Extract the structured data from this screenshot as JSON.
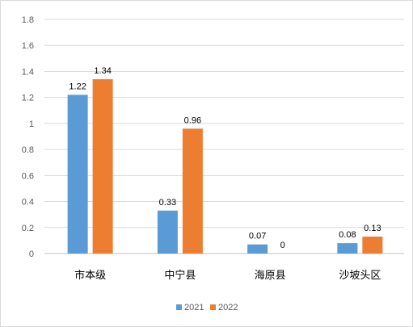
{
  "chart_data": {
    "type": "bar",
    "categories": [
      "市本级",
      "中宁县",
      "海原县",
      "沙坡头区"
    ],
    "series": [
      {
        "name": "2021",
        "values": [
          1.22,
          0.33,
          0.07,
          0.08
        ],
        "labels": [
          "1.22",
          "0.33",
          "0.07",
          "0.08"
        ],
        "color": "#5b9bd5"
      },
      {
        "name": "2022",
        "values": [
          1.34,
          0.96,
          0,
          0.13
        ],
        "labels": [
          "1.34",
          "0.96",
          "0",
          "0.13"
        ],
        "color": "#ed7d31"
      }
    ],
    "yticks": [
      "0",
      "0.2",
      "0.4",
      "0.6",
      "0.8",
      "1",
      "1.2",
      "1.4",
      "1.6",
      "1.8"
    ],
    "ylim": [
      0,
      1.8
    ],
    "grid": true,
    "legend_position": "bottom"
  }
}
